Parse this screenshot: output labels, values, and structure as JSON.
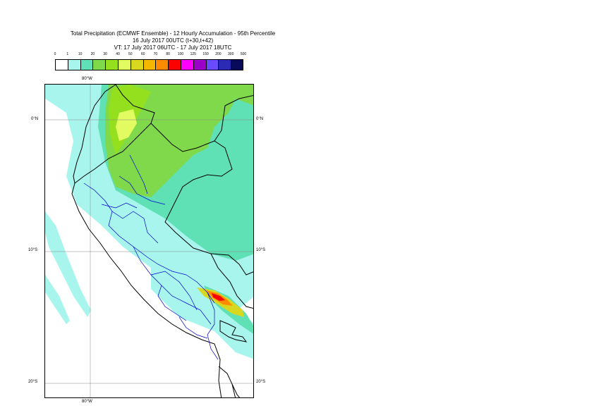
{
  "title": {
    "line1": "Total Precipitation (ECMWF Ensemble) - 12 Hourly Accumulation - 95th Percentile",
    "line2": "16 July 2017 00UTC (t+30,t+42)",
    "line3": "VT: 17 July 2017 06UTC - 17 July 2017 18UTC"
  },
  "legend": {
    "labels": [
      "0",
      "1",
      "10",
      "20",
      "30",
      "40",
      "50",
      "60",
      "70",
      "80",
      "100",
      "125",
      "150",
      "200",
      "300",
      "500"
    ],
    "colors": [
      "#ffffff",
      "#a8f5ee",
      "#5fe0b5",
      "#80d94a",
      "#94e01e",
      "#e2fb60",
      "#d8d820",
      "#f5b800",
      "#ff8c00",
      "#ff0000",
      "#ff00ff",
      "#9b00c8",
      "#6a4cff",
      "#2a2ab5",
      "#0a0a5a"
    ]
  },
  "map": {
    "lon_labels": {
      "top": "80°W",
      "bottom": "80°W"
    },
    "lat_labels": {
      "north0_left": "0°N",
      "north0_right": "0°N",
      "s10_left": "10°S",
      "s10_right": "10°S",
      "s20_left": "20°S",
      "s20_right": "20°S"
    },
    "colors": {
      "light_cyan": "#a8f5ee",
      "teal": "#5fe0b5",
      "green": "#80d94a",
      "lime": "#94e01e",
      "yellow": "#e2fb60",
      "gold": "#d8d820",
      "orange": "#ff8c00",
      "red": "#ff0000",
      "coastline": "#000000",
      "regions": "#0000cc",
      "graticule": "#888888"
    }
  }
}
